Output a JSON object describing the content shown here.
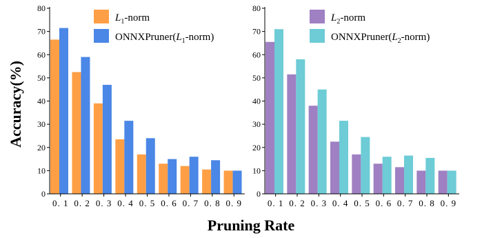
{
  "xlabel": "Pruning Rate",
  "ylabel": "Accuracy(%)",
  "colors": {
    "l1_norm": "#FF9F45",
    "onnx_l1": "#4A87E6",
    "l2_norm": "#9F80C2",
    "onnx_l2": "#6DCCD6"
  },
  "chart_data": [
    {
      "type": "bar",
      "categories": [
        "0. 1",
        "0. 2",
        "0. 3",
        "0. 4",
        "0. 5",
        "0. 6",
        "0. 7",
        "0. 8",
        "0. 9"
      ],
      "ylim": [
        0,
        80
      ],
      "yticks": [
        0,
        10,
        20,
        30,
        40,
        50,
        60,
        70,
        80
      ],
      "legend_position": "top-right",
      "series": [
        {
          "name": "L1-norm",
          "name_main": "L",
          "name_sub": "1",
          "name_rest": "-norm",
          "color_key": "l1_norm",
          "values": [
            66.5,
            52.5,
            39,
            23.5,
            17,
            13,
            12,
            10.5,
            10
          ]
        },
        {
          "name": "ONNXPruner(L1-norm)",
          "name_pre": "ONNXPruner(",
          "name_main": "L",
          "name_sub": "1",
          "name_rest": "-norm)",
          "color_key": "onnx_l1",
          "values": [
            71.5,
            59,
            47,
            31.5,
            24,
            15,
            16,
            14.5,
            10
          ]
        }
      ]
    },
    {
      "type": "bar",
      "categories": [
        "0. 1",
        "0. 2",
        "0. 3",
        "0. 4",
        "0. 5",
        "0. 6",
        "0. 7",
        "0. 8",
        "0. 9"
      ],
      "ylim": [
        0,
        80
      ],
      "yticks": [
        0,
        10,
        20,
        30,
        40,
        50,
        60,
        70,
        80
      ],
      "legend_position": "top-right",
      "series": [
        {
          "name": "L2-norm",
          "name_main": "L",
          "name_sub": "2",
          "name_rest": "-norm",
          "color_key": "l2_norm",
          "values": [
            65.5,
            51.5,
            38,
            22.5,
            17,
            13,
            11.5,
            10,
            10
          ]
        },
        {
          "name": "ONNXPruner(L2-norm)",
          "name_pre": "ONNXPruner(",
          "name_main": "L",
          "name_sub": "2",
          "name_rest": "-norm)",
          "color_key": "onnx_l2",
          "values": [
            71,
            58,
            45,
            31.5,
            24.5,
            16,
            16.5,
            15.5,
            10
          ]
        }
      ]
    }
  ]
}
